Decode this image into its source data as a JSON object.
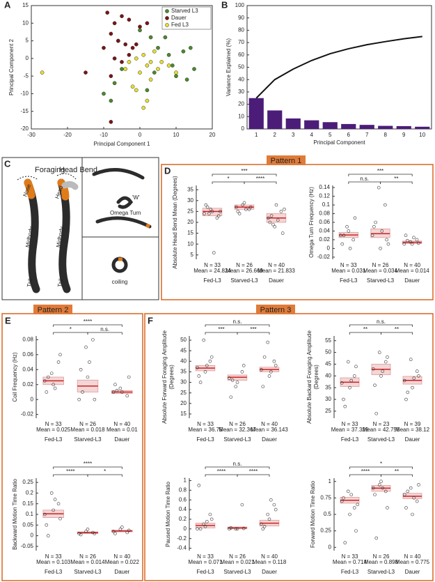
{
  "panel_labels": [
    "A",
    "B",
    "C",
    "D",
    "E",
    "F"
  ],
  "patterns": [
    "Pattern 1",
    "Pattern 2",
    "Pattern 3"
  ],
  "panel_c": {
    "foraging": "Foraging",
    "head_bend": "Head Bend",
    "nose": "Nose",
    "head": "Head",
    "midbody_1": "Midbody",
    "midbody_2": "Midbody",
    "tail_1": "Tail",
    "tail_2": "Tail",
    "w": "'W'",
    "omega": "Omega Turn",
    "coiling": "coiling"
  },
  "chart_data": [
    {
      "type": "scatter",
      "xlabel": "Principal Component 1",
      "ylabel": [
        "Principal Component 2"
      ],
      "xlim": [
        -30,
        20
      ],
      "ylim": [
        -20,
        15
      ],
      "xticks": [
        -30,
        -20,
        -10,
        0,
        10,
        20
      ],
      "yticks": [
        -20,
        -15,
        -10,
        -5,
        0,
        5,
        10,
        15
      ],
      "legend": "upper right",
      "series": [
        {
          "name": "Starved L3",
          "color": "#4a8a2a",
          "x": [
            -10,
            -8,
            -7,
            -5,
            2,
            4,
            5,
            7,
            9,
            10,
            12,
            13,
            14,
            15,
            3,
            0,
            -6,
            8
          ],
          "y": [
            -10,
            -12,
            -7,
            -3,
            -9,
            -4,
            3,
            6,
            -2,
            -5,
            2,
            -6,
            3,
            -3,
            6,
            8,
            5,
            1
          ]
        },
        {
          "name": "Dauer",
          "color": "#7a1414",
          "x": [
            -9,
            -7,
            -5,
            -3,
            -8,
            -6,
            -4,
            -2,
            -10,
            -7,
            -5,
            -3,
            -8,
            -15,
            -8,
            0,
            2,
            -1
          ],
          "y": [
            13,
            10,
            12,
            11,
            7,
            5,
            4,
            3,
            3,
            0,
            -1,
            1,
            -5,
            -4,
            -18,
            9,
            10,
            4
          ]
        },
        {
          "name": "Fed L3",
          "color": "#e6df2e",
          "x": [
            -27,
            -3,
            -1,
            1,
            2,
            0,
            3,
            5,
            -2,
            4,
            6,
            8,
            -1,
            1,
            2,
            -4,
            3,
            10
          ],
          "y": [
            -4,
            -1,
            0,
            1,
            -2,
            -4,
            -6,
            -3,
            -8,
            2,
            -1,
            -2,
            -9,
            -14,
            -12,
            -3,
            -1,
            -4
          ]
        }
      ]
    },
    {
      "type": "bar",
      "xlabel": "Principal Component",
      "ylabel": [
        "Variance Explained (%)"
      ],
      "categories": [
        1,
        2,
        3,
        4,
        5,
        6,
        7,
        8,
        9,
        10
      ],
      "ylim": [
        0,
        100
      ],
      "yticks": [
        0,
        10,
        20,
        30,
        40,
        50,
        60,
        70,
        80,
        90,
        100
      ],
      "series": [
        {
          "type": "bar",
          "color": "#4b1d78",
          "values": [
            25,
            15,
            8.5,
            7,
            5.5,
            4,
            3.3,
            2.5,
            2.3,
            1.8
          ]
        },
        {
          "type": "line",
          "color": "#111111",
          "values": [
            25,
            40,
            48.5,
            55.5,
            61,
            65,
            68.3,
            70.8,
            73.1,
            74.9
          ]
        }
      ]
    },
    {
      "type": "box",
      "ylabel": [
        "Absolute Head Bend Mean (Degrees)"
      ],
      "categories": [
        "Fed-L3",
        "Starved-L3",
        "Dauer"
      ],
      "ylim": [
        3,
        37
      ],
      "yticks": [
        5,
        10,
        15,
        20,
        25,
        30,
        35
      ],
      "q1": [
        23,
        26,
        20
      ],
      "median": [
        25,
        27,
        22
      ],
      "q3": [
        26.5,
        28,
        24
      ],
      "points": [
        [
          24,
          26,
          22,
          28,
          25,
          23,
          27,
          6,
          25,
          24
        ],
        [
          27,
          28,
          26,
          25,
          29,
          27,
          24,
          26
        ],
        [
          22,
          18,
          25,
          20,
          28,
          15,
          23,
          21,
          26,
          19
        ]
      ],
      "n_labels": [
        "N = 33",
        "N = 26",
        "N = 40"
      ],
      "mean_labels": [
        "Mean = 24.824",
        "Mean = 26.669",
        "Mean = 21.833"
      ],
      "comparisons": [
        {
          "between": [
            "Fed-L3",
            "Dauer"
          ],
          "label": "***"
        },
        {
          "between": [
            "Fed-L3",
            "Starved-L3"
          ],
          "label": "*"
        },
        {
          "between": [
            "Starved-L3",
            "Dauer"
          ],
          "label": "****"
        }
      ]
    },
    {
      "type": "box",
      "ylabel": [
        "Omega Turn Frequency (Hz)"
      ],
      "categories": [
        "Fed-L3",
        "Starved-L3",
        "Dauer"
      ],
      "ylim": [
        -0.025,
        0.145
      ],
      "yticks": [
        -0.02,
        0,
        0.02,
        0.04,
        0.06,
        0.08,
        0.1,
        0.12,
        0.14
      ],
      "q1": [
        0.025,
        0.025,
        0.011
      ],
      "median": [
        0.031,
        0.034,
        0.014
      ],
      "q3": [
        0.037,
        0.045,
        0.017
      ],
      "points": [
        [
          0.03,
          0.05,
          0.02,
          0.01,
          0.04,
          0.07,
          0.03,
          0.0
        ],
        [
          0.03,
          0.14,
          0.1,
          0.05,
          0.0,
          0.02,
          0.06,
          0.04,
          0.01
        ],
        [
          0.01,
          0.015,
          0.02,
          0.03,
          0.01,
          0.012,
          0.018,
          0.025
        ]
      ],
      "n_labels": [
        "N = 33",
        "N = 26",
        "N = 40"
      ],
      "mean_labels": [
        "Mean = 0.031",
        "Mean = 0.034",
        "Mean = 0.014"
      ],
      "comparisons": [
        {
          "between": [
            "Fed-L3",
            "Dauer"
          ],
          "label": "***"
        },
        {
          "between": [
            "Fed-L3",
            "Starved-L3"
          ],
          "label": "n.s."
        },
        {
          "between": [
            "Starved-L3",
            "Dauer"
          ],
          "label": "**"
        }
      ]
    },
    {
      "type": "box",
      "ylabel": [
        "Coil Frequency (Hz)"
      ],
      "categories": [
        "Fed-L3",
        "Starved-L3",
        "Dauer"
      ],
      "ylim": [
        -0.025,
        0.085
      ],
      "yticks": [
        -0.02,
        0,
        0.02,
        0.04,
        0.06,
        0.08
      ],
      "q1": [
        0.02,
        0.01,
        0.008
      ],
      "median": [
        0.025,
        0.018,
        0.01
      ],
      "q3": [
        0.03,
        0.026,
        0.012
      ],
      "points": [
        [
          0.025,
          0.035,
          0.05,
          0.01,
          0.02,
          0.06,
          0.03,
          0.015
        ],
        [
          0.0,
          0.07,
          0.08,
          0.04,
          0.03,
          0.0,
          0.01,
          0.05
        ],
        [
          0.01,
          0.015,
          0.005,
          0.02,
          0.01,
          0.03,
          0.012
        ]
      ],
      "n_labels": [
        "N = 33",
        "N = 26",
        "N = 40"
      ],
      "mean_labels": [
        "Mean = 0.025",
        "Mean = 0.018",
        "Mean = 0.01"
      ],
      "comparisons": [
        {
          "between": [
            "Fed-L3",
            "Dauer"
          ],
          "label": "****"
        },
        {
          "between": [
            "Fed-L3",
            "Starved-L3"
          ],
          "label": "*"
        },
        {
          "between": [
            "Starved-L3",
            "Dauer"
          ],
          "label": "n.s."
        }
      ]
    },
    {
      "type": "box",
      "ylabel": [
        "Backward Motion Time Ratio"
      ],
      "categories": [
        "Fed-L3",
        "Starved-L3",
        "Dauer"
      ],
      "ylim": [
        -0.07,
        0.27
      ],
      "yticks": [
        -0.05,
        0,
        0.05,
        0.1,
        0.15,
        0.2,
        0.25
      ],
      "q1": [
        0.085,
        0.01,
        0.018
      ],
      "median": [
        0.103,
        0.014,
        0.022
      ],
      "q3": [
        0.12,
        0.018,
        0.026
      ],
      "points": [
        [
          0.1,
          0.2,
          0.15,
          0.05,
          0.12,
          0.08,
          0.0,
          0.17
        ],
        [
          0.01,
          0.02,
          0.015,
          0.005,
          0.03,
          0.01
        ],
        [
          0.02,
          0.03,
          0.015,
          0.01,
          0.04,
          0.025
        ]
      ],
      "n_labels": [
        "N = 33",
        "N = 26",
        "N = 40"
      ],
      "mean_labels": [
        "Mean = 0.103",
        "Mean = 0.014",
        "Mean = 0.022"
      ],
      "comparisons": [
        {
          "between": [
            "Fed-L3",
            "Dauer"
          ],
          "label": "****"
        },
        {
          "between": [
            "Fed-L3",
            "Starved-L3"
          ],
          "label": "****"
        },
        {
          "between": [
            "Starved-L3",
            "Dauer"
          ],
          "label": "*"
        }
      ]
    },
    {
      "type": "box",
      "ylabel": [
        "Absolute Forward Foraging Amplitude",
        "(Degrees)"
      ],
      "categories": [
        "Fed-L3",
        "Starved-L3",
        "Dauer"
      ],
      "ylim": [
        13,
        52
      ],
      "yticks": [
        15,
        20,
        25,
        30,
        35,
        40,
        45,
        50
      ],
      "q1": [
        35.5,
        31,
        35
      ],
      "median": [
        36.75,
        32.4,
        36.1
      ],
      "q3": [
        38,
        33.5,
        37.2
      ],
      "points": [
        [
          37,
          50,
          40,
          33,
          35,
          42,
          30,
          38
        ],
        [
          32,
          28,
          35,
          23,
          30,
          38,
          31
        ],
        [
          36,
          49,
          40,
          28,
          33,
          38,
          42,
          35
        ]
      ],
      "n_labels": [
        "N = 33",
        "N = 26",
        "N = 40"
      ],
      "mean_labels": [
        "Mean = 36.75",
        "Mean = 32.367",
        "Mean = 36.143"
      ],
      "comparisons": [
        {
          "between": [
            "Fed-L3",
            "Dauer"
          ],
          "label": "n.s."
        },
        {
          "between": [
            "Fed-L3",
            "Starved-L3"
          ],
          "label": "***"
        },
        {
          "between": [
            "Starved-L3",
            "Dauer"
          ],
          "label": "***"
        }
      ]
    },
    {
      "type": "box",
      "ylabel": [
        "Absolute Backard Foraging Amplitude",
        "(Degrees)"
      ],
      "categories": [
        "Fed-L3",
        "Starved-L3",
        "Dauer"
      ],
      "ylim": [
        22,
        57
      ],
      "yticks": [
        25,
        30,
        35,
        40,
        45,
        50,
        55
      ],
      "q1": [
        35.5,
        40.5,
        36.5
      ],
      "median": [
        37.3,
        42.8,
        38.1
      ],
      "q3": [
        39.2,
        45,
        39.8
      ],
      "points": [
        [
          37,
          46,
          40,
          30,
          35,
          44,
          27,
          38
        ],
        [
          43,
          50,
          46,
          36,
          40,
          48,
          24,
          42
        ],
        [
          38,
          47,
          42,
          30,
          35,
          40,
          33,
          39
        ]
      ],
      "n_labels": [
        "N = 33",
        "N = 23",
        "N = 39"
      ],
      "mean_labels": [
        "Mean = 37.329",
        "Mean = 42.755",
        "Mean = 38.12"
      ],
      "comparisons": [
        {
          "between": [
            "Fed-L3",
            "Dauer"
          ],
          "label": "n.s."
        },
        {
          "between": [
            "Fed-L3",
            "Starved-L3"
          ],
          "label": "**"
        },
        {
          "between": [
            "Starved-L3",
            "Dauer"
          ],
          "label": "**"
        }
      ]
    },
    {
      "type": "box",
      "ylabel": [
        "Paused Motion Time Ratio"
      ],
      "categories": [
        "Fed-L3",
        "Starved-L3",
        "Dauer"
      ],
      "ylim": [
        -0.45,
        1.05
      ],
      "yticks": [
        -0.4,
        -0.2,
        0,
        0.2,
        0.4,
        0.6,
        0.8,
        1
      ],
      "q1": [
        0.02,
        0,
        0.06
      ],
      "median": [
        0.071,
        0.021,
        0.118
      ],
      "q3": [
        0.12,
        0.04,
        0.18
      ],
      "points": [
        [
          0,
          0.1,
          0.3,
          0.9,
          0.05,
          0.2,
          0,
          0.15
        ],
        [
          0,
          0,
          0.5,
          0.02,
          0,
          0.01
        ],
        [
          0.1,
          0.3,
          0.5,
          0,
          0.2,
          0.4,
          0.05,
          0.6
        ]
      ],
      "n_labels": [
        "N = 33",
        "N = 26",
        "N = 40"
      ],
      "mean_labels": [
        "Mean = 0.071",
        "Mean = 0.021",
        "Mean = 0.118"
      ],
      "comparisons": [
        {
          "between": [
            "Fed-L3",
            "Dauer"
          ],
          "label": "n.s."
        },
        {
          "between": [
            "Fed-L3",
            "Starved-L3"
          ],
          "label": "****"
        },
        {
          "between": [
            "Starved-L3",
            "Dauer"
          ],
          "label": "****"
        }
      ]
    },
    {
      "type": "box",
      "ylabel": [
        "Forward Motion Time Ratio"
      ],
      "categories": [
        "Fed-L3",
        "Starved-L3",
        "Dauer"
      ],
      "ylim": [
        -0.05,
        1.05
      ],
      "yticks": [
        0,
        0.25,
        0.5,
        0.75,
        1
      ],
      "q1": [
        0.67,
        0.85,
        0.74
      ],
      "median": [
        0.714,
        0.898,
        0.775
      ],
      "q3": [
        0.76,
        0.94,
        0.82
      ],
      "points": [
        [
          0.7,
          0.85,
          0.6,
          0.75,
          0.5,
          0.25,
          0.07,
          0.8,
          0.65
        ],
        [
          0.9,
          0.95,
          0.85,
          0.8,
          1,
          0.6,
          0.14,
          0.9
        ],
        [
          0.8,
          0.9,
          0.7,
          0.6,
          0.5,
          0.95,
          0.85,
          0.75
        ]
      ],
      "n_labels": [
        "N = 33",
        "N = 26",
        "N = 40"
      ],
      "mean_labels": [
        "Mean = 0.714",
        "Mean = 0.898",
        "Mean = 0.775"
      ],
      "comparisons": [
        {
          "between": [
            "Fed-L3",
            "Dauer"
          ],
          "label": "*"
        },
        {
          "between": [
            "Fed-L3",
            "Starved-L3"
          ],
          "label": "****"
        },
        {
          "between": [
            "Starved-L3",
            "Dauer"
          ],
          "label": "**"
        }
      ]
    }
  ]
}
